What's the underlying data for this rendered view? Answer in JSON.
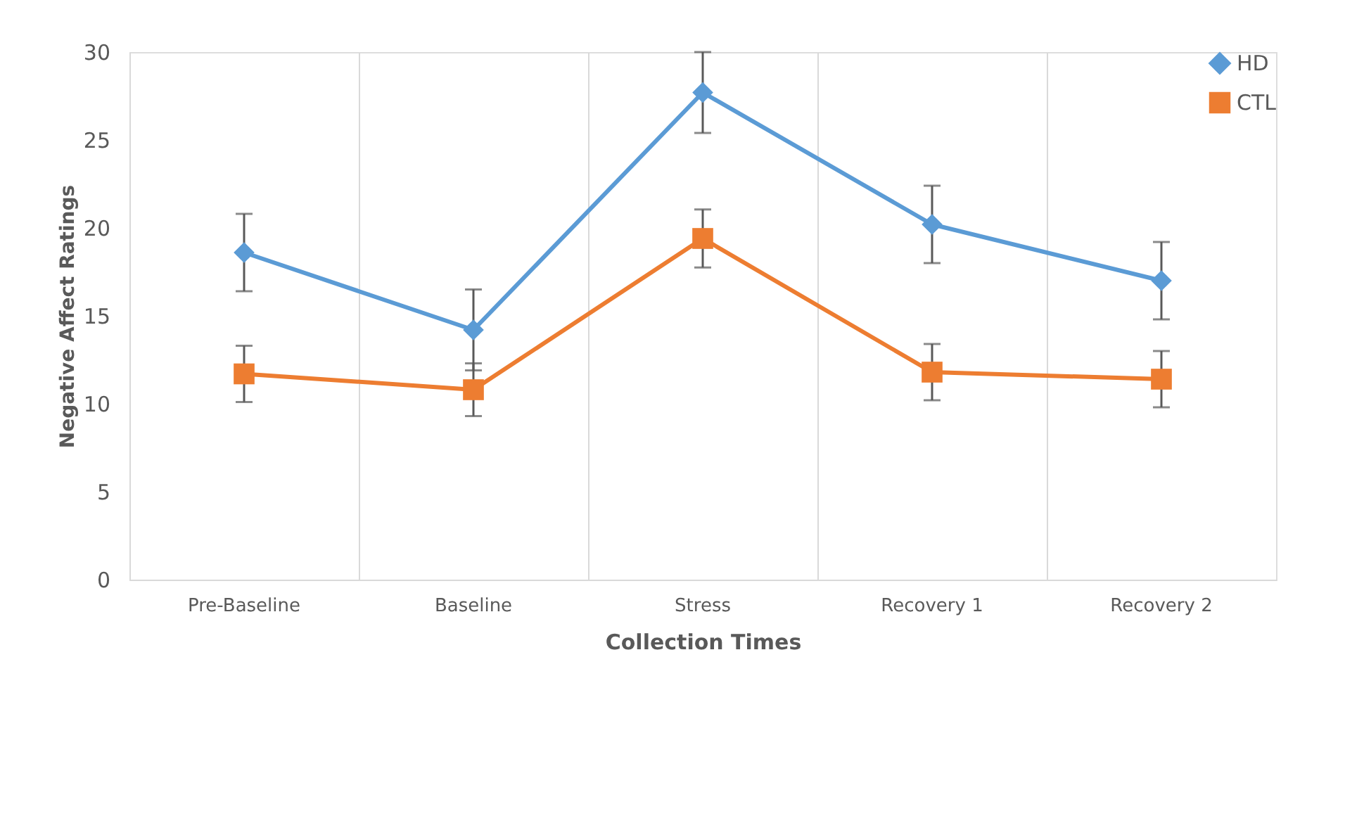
{
  "chart_data": {
    "type": "line",
    "xlabel": "Collection Times",
    "ylabel": "Negative Affect Ratings",
    "categories": [
      "Pre-Baseline",
      "Baseline",
      "Stress",
      "Recovery 1",
      "Recovery 2"
    ],
    "series": [
      {
        "name": "HD",
        "color": "#5b9bd5",
        "marker": "diamond",
        "values": [
          18.6,
          14.2,
          27.7,
          20.2,
          17.0
        ],
        "errors": [
          2.2,
          2.3,
          2.3,
          2.2,
          2.2
        ]
      },
      {
        "name": "CTL",
        "color": "#ed7d31",
        "marker": "square",
        "values": [
          11.7,
          10.8,
          19.4,
          11.8,
          11.4
        ],
        "errors": [
          1.6,
          1.5,
          1.65,
          1.6,
          1.6
        ]
      }
    ],
    "ylim": [
      0,
      30
    ],
    "yticks": [
      0,
      5,
      10,
      15,
      20,
      25,
      30
    ],
    "grid": "x",
    "legend": "top right"
  }
}
